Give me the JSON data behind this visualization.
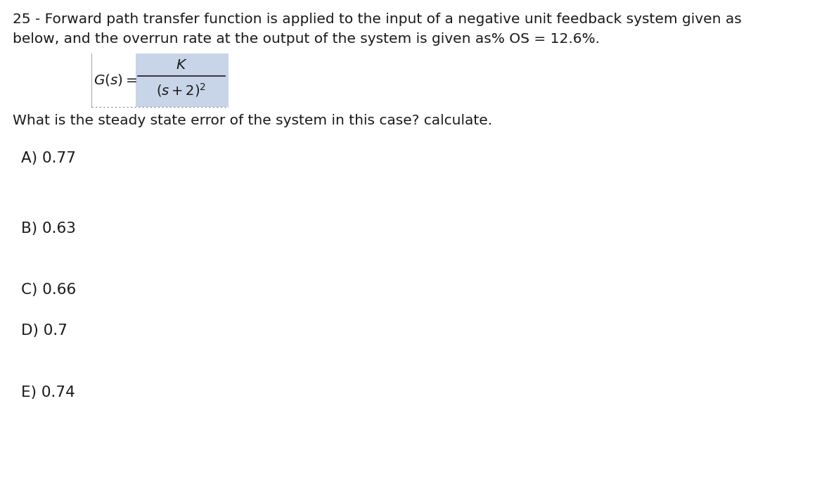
{
  "bg_color": "#ffffff",
  "text_color": "#1a1a1a",
  "question_line1": "25 - Forward path transfer function is applied to the input of a negative unit feedback system given as",
  "question_line2": "below, and the overrun rate at the output of the system is given as% OS = 12.6%.",
  "question_line3": "What is the steady state error of the system in this case? calculate.",
  "options": [
    "A) 0.77",
    "B) 0.63",
    "C) 0.66",
    "D) 0.7",
    "E) 0.74"
  ],
  "font_size_question": 14.5,
  "font_size_options": 15.5,
  "box_color": "#c8d4e8",
  "fraction_bar_color": "#1a1a1a"
}
